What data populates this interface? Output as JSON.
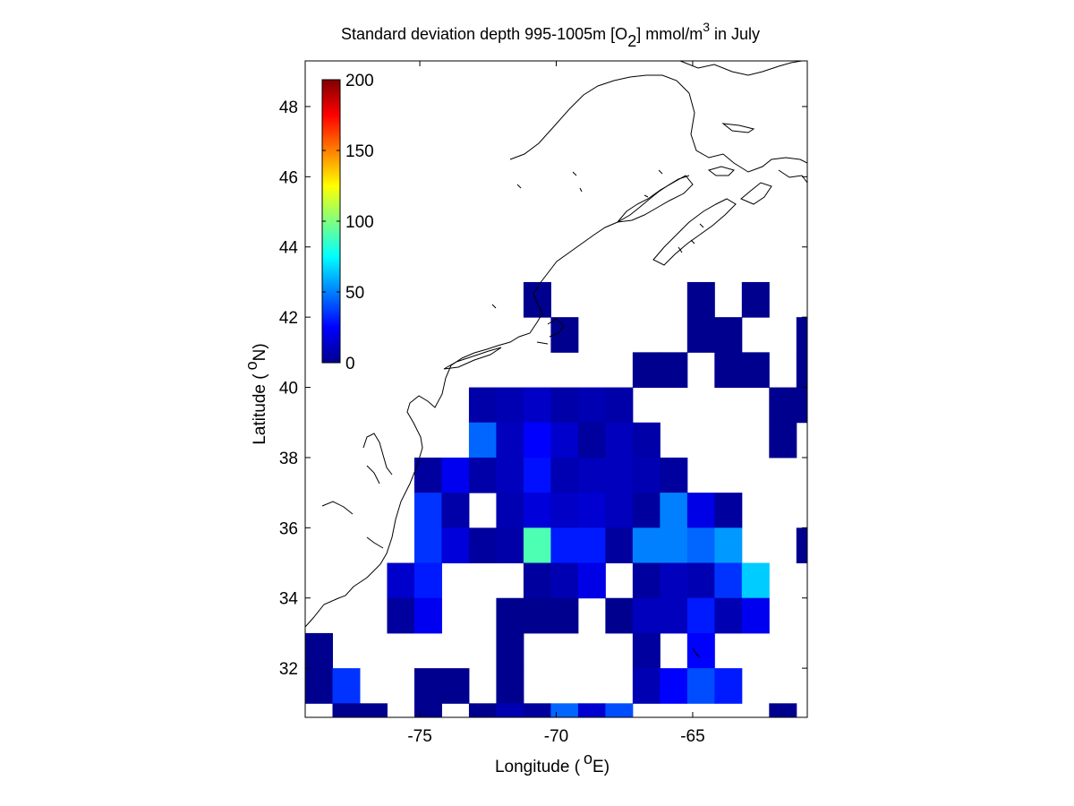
{
  "title": {
    "prefix": "Standard deviation depth 995-1005m [O",
    "subscript": "2",
    "middle": "] mmol/m",
    "superscript": "3",
    "suffix": " in July"
  },
  "axes": {
    "xlabel_prefix": "Longitude (",
    "xlabel_degree": "o",
    "xlabel_suffix": "E)",
    "ylabel_prefix": "Latitude (",
    "ylabel_degree": "o",
    "ylabel_suffix": "N)",
    "xlim": [
      -79.2,
      -60.8
    ],
    "ylim": [
      30.6,
      49.3
    ],
    "xticks": [
      "-75",
      "-70",
      "-65"
    ],
    "xtick_values": [
      -75,
      -70,
      -65
    ],
    "yticks": [
      "32",
      "34",
      "36",
      "38",
      "40",
      "42",
      "44",
      "46",
      "48"
    ],
    "ytick_values": [
      32,
      34,
      36,
      38,
      40,
      42,
      44,
      46,
      48
    ]
  },
  "colorbar": {
    "colormap": "jet",
    "range": [
      0,
      200
    ],
    "ticks": [
      "0",
      "50",
      "100",
      "150",
      "200"
    ],
    "tick_values": [
      0,
      50,
      100,
      150,
      200
    ],
    "placement": "top-left inside axes"
  },
  "chart_data": {
    "type": "heatmap",
    "cell_size_deg": 1,
    "x_lon_centers": [
      -78.7,
      -77.7,
      -76.7,
      -75.7,
      -74.7,
      -73.7,
      -72.7,
      -71.7,
      -70.7,
      -69.7,
      -68.7,
      -67.7,
      -66.7,
      -65.7,
      -64.7,
      -63.7,
      -62.7,
      -61.7,
      -60.7
    ],
    "y_lat_centers": [
      42.5,
      41.5,
      40.5,
      39.5,
      38.5,
      37.5,
      36.5,
      35.5,
      34.5,
      33.5,
      32.5,
      31.5,
      30.5
    ],
    "values": [
      [
        null,
        null,
        null,
        null,
        null,
        null,
        null,
        null,
        3,
        null,
        null,
        null,
        null,
        null,
        3,
        null,
        3,
        null,
        null
      ],
      [
        null,
        null,
        null,
        null,
        null,
        null,
        null,
        null,
        null,
        3,
        null,
        null,
        null,
        null,
        3,
        3,
        null,
        null,
        3
      ],
      [
        null,
        null,
        null,
        null,
        null,
        null,
        null,
        null,
        null,
        null,
        null,
        null,
        3,
        3,
        null,
        3,
        3,
        null,
        3
      ],
      [
        null,
        null,
        null,
        null,
        null,
        null,
        8,
        10,
        14,
        8,
        10,
        8,
        null,
        null,
        null,
        null,
        null,
        3,
        3
      ],
      [
        null,
        null,
        null,
        null,
        null,
        null,
        45,
        12,
        25,
        15,
        6,
        12,
        8,
        null,
        null,
        null,
        null,
        3,
        null
      ],
      [
        null,
        null,
        null,
        null,
        6,
        22,
        8,
        12,
        28,
        10,
        12,
        12,
        10,
        6,
        null,
        null,
        null,
        null,
        null
      ],
      [
        null,
        null,
        null,
        null,
        35,
        8,
        null,
        10,
        18,
        14,
        16,
        12,
        6,
        50,
        20,
        6,
        null,
        null,
        null
      ],
      [
        null,
        null,
        null,
        null,
        35,
        18,
        6,
        8,
        90,
        30,
        30,
        6,
        50,
        50,
        45,
        55,
        null,
        null,
        3
      ],
      [
        null,
        null,
        null,
        15,
        30,
        null,
        null,
        null,
        6,
        10,
        20,
        null,
        6,
        12,
        10,
        35,
        65,
        null,
        null
      ],
      [
        null,
        null,
        null,
        6,
        22,
        null,
        null,
        3,
        3,
        3,
        null,
        3,
        12,
        12,
        30,
        10,
        22,
        null,
        null
      ],
      [
        3,
        null,
        null,
        null,
        null,
        null,
        null,
        3,
        null,
        null,
        null,
        null,
        6,
        null,
        25,
        null,
        null,
        null,
        null
      ],
      [
        3,
        35,
        null,
        null,
        3,
        3,
        null,
        3,
        null,
        null,
        null,
        null,
        10,
        25,
        40,
        30,
        null,
        null,
        null
      ],
      [
        null,
        3,
        3,
        null,
        3,
        null,
        3,
        10,
        6,
        45,
        16,
        40,
        null,
        null,
        null,
        null,
        null,
        3,
        null
      ]
    ]
  }
}
